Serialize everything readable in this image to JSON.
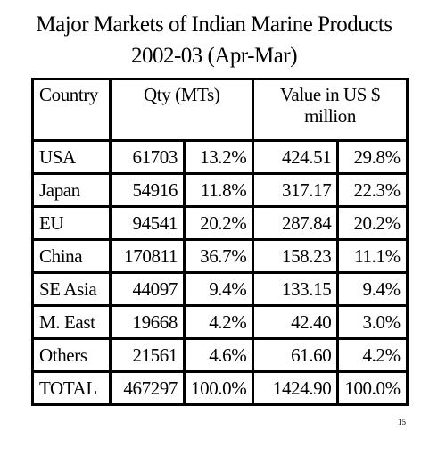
{
  "header": {
    "title": "Major Markets of Indian Marine Products",
    "subtitle": "2002-03 (Apr-Mar)"
  },
  "table": {
    "columns": [
      "Country",
      "Qty (MTs)",
      "Value in US $ million"
    ],
    "rows": [
      [
        "USA",
        "61703",
        "13.2%",
        "424.51",
        "29.8%"
      ],
      [
        "Japan",
        "54916",
        "11.8%",
        "317.17",
        "22.3%"
      ],
      [
        "EU",
        "94541",
        "20.2%",
        "287.84",
        "20.2%"
      ],
      [
        "China",
        "170811",
        "36.7%",
        "158.23",
        "11.1%"
      ],
      [
        "SE Asia",
        "44097",
        "9.4%",
        "133.15",
        "9.4%"
      ],
      [
        "M. East",
        "19668",
        "4.2%",
        "42.40",
        "3.0%"
      ],
      [
        "Others",
        "21561",
        "4.6%",
        "61.60",
        "4.2%"
      ],
      [
        "TOTAL",
        "467297",
        "100.0%",
        "1424.90",
        "100.0%"
      ]
    ]
  },
  "footer": {
    "page": "15"
  }
}
